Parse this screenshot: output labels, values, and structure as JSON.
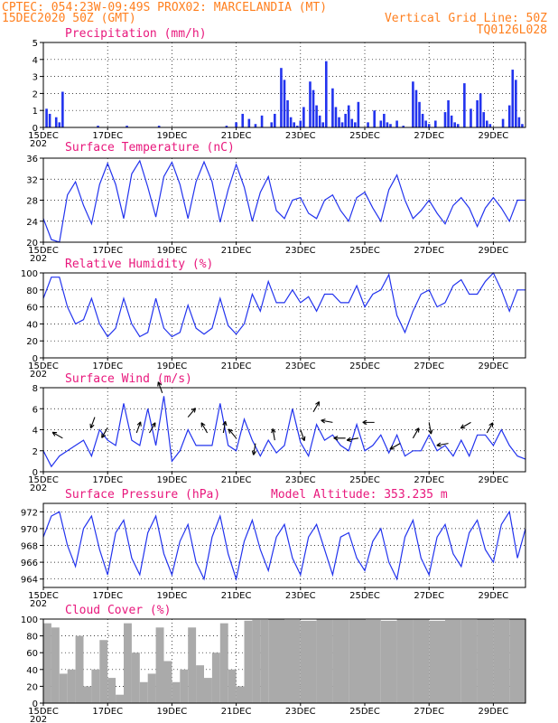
{
  "header": {
    "line1_left": "CPTEC:   054:23W-09:49S   PROX02: MARCELANDIA (MT)",
    "line2_left": "15DEC2020 50Z (GMT)",
    "line2_right": "Vertical Grid Line: 50Z",
    "line3_right": "TQ0126L028"
  },
  "colors": {
    "header": "#ff7f1e",
    "panel_title": "#e8177c",
    "series": "#2233ee",
    "cloud": "#aaaaaa"
  },
  "x_axis": {
    "ticks": [
      "15DEC",
      "17DEC",
      "19DEC",
      "21DEC",
      "23DEC",
      "25DEC",
      "27DEC",
      "29DEC"
    ],
    "start_day": 15,
    "end_day": 30,
    "year_fragment": "202"
  },
  "chart_data": [
    {
      "type": "bar",
      "title": "Precipitation (mm/h)",
      "ylim": [
        0,
        5
      ],
      "yticks": [
        "0",
        "1",
        "2",
        "3",
        "4",
        "5"
      ],
      "x": [
        "15.1",
        "15.2",
        "15.4",
        "15.5",
        "15.6",
        "16.7",
        "17.6",
        "18.6",
        "20.7",
        "21.0",
        "21.2",
        "21.4",
        "21.6",
        "21.8",
        "22.1",
        "22.2",
        "22.4",
        "22.5",
        "22.6",
        "22.7",
        "22.8",
        "22.9",
        "23.0",
        "23.1",
        "23.3",
        "23.4",
        "23.5",
        "23.6",
        "23.7",
        "23.8",
        "24.0",
        "24.1",
        "24.2",
        "24.3",
        "24.4",
        "24.5",
        "24.6",
        "24.7",
        "24.8",
        "25.1",
        "25.3",
        "25.5",
        "25.6",
        "25.7",
        "25.8",
        "26.0",
        "26.2",
        "26.5",
        "26.6",
        "26.7",
        "26.8",
        "26.9",
        "27.0",
        "27.2",
        "27.5",
        "27.6",
        "27.7",
        "27.8",
        "27.9",
        "28.1",
        "28.3",
        "28.5",
        "28.6",
        "28.7",
        "28.8",
        "28.9",
        "29.3",
        "29.5",
        "29.6",
        "29.7",
        "29.8",
        "29.9"
      ],
      "values": [
        1.1,
        0.8,
        0.6,
        0.3,
        2.1,
        0.1,
        0.1,
        0.1,
        0.1,
        0.3,
        0.8,
        0.5,
        0.2,
        0.7,
        0.3,
        0.8,
        3.5,
        2.8,
        1.6,
        0.6,
        0.3,
        0.1,
        0.4,
        1.2,
        2.7,
        2.2,
        1.3,
        0.7,
        0.3,
        3.9,
        2.3,
        1.2,
        0.6,
        0.3,
        0.8,
        1.3,
        0.5,
        0.3,
        1.5,
        0.3,
        1.0,
        0.4,
        0.8,
        0.3,
        0.2,
        0.4,
        0.1,
        2.7,
        2.2,
        1.5,
        0.8,
        0.4,
        0.2,
        0.4,
        0.9,
        1.6,
        0.7,
        0.3,
        0.2,
        2.6,
        1.1,
        1.6,
        2.0,
        0.9,
        0.4,
        0.2,
        0.5,
        1.3,
        3.4,
        2.8,
        0.6,
        0.2
      ]
    },
    {
      "type": "line",
      "title": "Surface Temperature (nC)",
      "ylim": [
        20,
        36
      ],
      "yticks": [
        "20",
        "24",
        "28",
        "32",
        "36"
      ],
      "x": [
        15.0,
        15.25,
        15.5,
        15.75,
        16.0,
        16.25,
        16.5,
        16.75,
        17.0,
        17.25,
        17.5,
        17.75,
        18.0,
        18.25,
        18.5,
        18.75,
        19.0,
        19.25,
        19.5,
        19.75,
        20.0,
        20.25,
        20.5,
        20.75,
        21.0,
        21.25,
        21.5,
        21.75,
        22.0,
        22.25,
        22.5,
        22.75,
        23.0,
        23.25,
        23.5,
        23.75,
        24.0,
        24.25,
        24.5,
        24.75,
        25.0,
        25.25,
        25.5,
        25.75,
        26.0,
        26.25,
        26.5,
        26.75,
        27.0,
        27.25,
        27.5,
        27.75,
        28.0,
        28.25,
        28.5,
        28.75,
        29.0,
        29.25,
        29.5,
        29.75,
        30.0
      ],
      "values": [
        24.5,
        20.5,
        20,
        29,
        31.5,
        27,
        23.5,
        31,
        35,
        31,
        24.5,
        33,
        35.5,
        30.5,
        24.8,
        32.5,
        35.2,
        31,
        24.5,
        31.5,
        35.3,
        31.5,
        23.8,
        30,
        34.8,
        30.5,
        24,
        29.5,
        32.5,
        26,
        24.5,
        28,
        28.5,
        25.5,
        24.5,
        28,
        29,
        26,
        24,
        28.5,
        29.5,
        26.5,
        24,
        30,
        32.8,
        28,
        24.5,
        26,
        28,
        25.5,
        23.5,
        27,
        28.5,
        26.5,
        23,
        26.5,
        28.5,
        26.5,
        24,
        28,
        28
      ]
    },
    {
      "type": "line",
      "title": "Relative Humidity (%)",
      "ylim": [
        0,
        100
      ],
      "yticks": [
        "0",
        "20",
        "40",
        "60",
        "80",
        "100"
      ],
      "x": [
        15.0,
        15.25,
        15.5,
        15.75,
        16.0,
        16.25,
        16.5,
        16.75,
        17.0,
        17.25,
        17.5,
        17.75,
        18.0,
        18.25,
        18.5,
        18.75,
        19.0,
        19.25,
        19.5,
        19.75,
        20.0,
        20.25,
        20.5,
        20.75,
        21.0,
        21.25,
        21.5,
        21.75,
        22.0,
        22.25,
        22.5,
        22.75,
        23.0,
        23.25,
        23.5,
        23.75,
        24.0,
        24.25,
        24.5,
        24.75,
        25.0,
        25.25,
        25.5,
        25.75,
        26.0,
        26.25,
        26.5,
        26.75,
        27.0,
        27.25,
        27.5,
        27.75,
        28.0,
        28.25,
        28.5,
        28.75,
        29.0,
        29.25,
        29.5,
        29.75,
        30.0
      ],
      "values": [
        70,
        95,
        95,
        60,
        40,
        45,
        70,
        40,
        25,
        35,
        70,
        40,
        25,
        30,
        70,
        35,
        25,
        30,
        62,
        35,
        28,
        35,
        70,
        38,
        28,
        40,
        75,
        55,
        90,
        65,
        65,
        80,
        65,
        72,
        55,
        75,
        75,
        65,
        65,
        85,
        60,
        75,
        80,
        98,
        50,
        30,
        55,
        75,
        80,
        60,
        65,
        85,
        92,
        75,
        75,
        90,
        100,
        80,
        55,
        80,
        80
      ]
    },
    {
      "type": "line",
      "title": "Surface Wind (m/s)",
      "ylim": [
        0,
        8
      ],
      "yticks": [
        "0",
        "2",
        "4",
        "6",
        "8"
      ],
      "x": [
        15.0,
        15.25,
        15.5,
        15.75,
        16.0,
        16.25,
        16.5,
        16.75,
        17.0,
        17.25,
        17.5,
        17.75,
        18.0,
        18.25,
        18.5,
        18.75,
        19.0,
        19.25,
        19.5,
        19.75,
        20.0,
        20.25,
        20.5,
        20.75,
        21.0,
        21.25,
        21.5,
        21.75,
        22.0,
        22.25,
        22.5,
        22.75,
        23.0,
        23.25,
        23.5,
        23.75,
        24.0,
        24.25,
        24.5,
        24.75,
        25.0,
        25.25,
        25.5,
        25.75,
        26.0,
        26.25,
        26.5,
        26.75,
        27.0,
        27.25,
        27.5,
        27.75,
        28.0,
        28.25,
        28.5,
        28.75,
        29.0,
        29.25,
        29.5,
        29.75,
        30.0
      ],
      "values": [
        2,
        0.5,
        1.5,
        2,
        2.5,
        3,
        1.5,
        4,
        3,
        2.5,
        6.5,
        3,
        2.5,
        6,
        2.5,
        7.2,
        1,
        2,
        4,
        2.5,
        2.5,
        2.5,
        6.5,
        2.5,
        2,
        5,
        3,
        1.5,
        3,
        1.8,
        2.5,
        6,
        2.8,
        1.5,
        4.5,
        3,
        3.5,
        2.5,
        2,
        4.5,
        2,
        2.5,
        3.5,
        1.8,
        3.5,
        1.5,
        2,
        2,
        3.5,
        2,
        2.5,
        1.5,
        3,
        1.5,
        3.5,
        3.5,
        2.5,
        4,
        2.5,
        1.5,
        1.2
      ],
      "arrows": [
        {
          "x": 15.6,
          "dir": 300
        },
        {
          "x": 16.6,
          "dir": 200
        },
        {
          "x": 17.0,
          "dir": 210
        },
        {
          "x": 17.9,
          "dir": 20
        },
        {
          "x": 18.3,
          "dir": 30
        },
        {
          "x": 18.7,
          "dir": 340
        },
        {
          "x": 19.5,
          "dir": 40
        },
        {
          "x": 20.1,
          "dir": 330
        },
        {
          "x": 20.6,
          "dir": 10
        },
        {
          "x": 21.0,
          "dir": 320
        },
        {
          "x": 21.6,
          "dir": 190
        },
        {
          "x": 22.2,
          "dir": 350
        },
        {
          "x": 23.0,
          "dir": 160
        },
        {
          "x": 23.4,
          "dir": 30
        },
        {
          "x": 24.0,
          "dir": 280
        },
        {
          "x": 24.4,
          "dir": 270
        },
        {
          "x": 24.8,
          "dir": 260
        },
        {
          "x": 25.3,
          "dir": 270
        },
        {
          "x": 26.1,
          "dir": 240
        },
        {
          "x": 26.5,
          "dir": 30
        },
        {
          "x": 27.0,
          "dir": 170
        },
        {
          "x": 27.6,
          "dir": 260
        },
        {
          "x": 28.3,
          "dir": 240
        },
        {
          "x": 28.8,
          "dir": 30
        }
      ]
    },
    {
      "type": "line",
      "title": "Surface Pressure (hPa)",
      "subtitle": "Model Altitude: 353.235 m",
      "ylim": [
        963,
        973
      ],
      "yticks": [
        "964",
        "966",
        "968",
        "970",
        "972"
      ],
      "x": [
        15.0,
        15.25,
        15.5,
        15.75,
        16.0,
        16.25,
        16.5,
        16.75,
        17.0,
        17.25,
        17.5,
        17.75,
        18.0,
        18.25,
        18.5,
        18.75,
        19.0,
        19.25,
        19.5,
        19.75,
        20.0,
        20.25,
        20.5,
        20.75,
        21.0,
        21.25,
        21.5,
        21.75,
        22.0,
        22.25,
        22.5,
        22.75,
        23.0,
        23.25,
        23.5,
        23.75,
        24.0,
        24.25,
        24.5,
        24.75,
        25.0,
        25.25,
        25.5,
        25.75,
        26.0,
        26.25,
        26.5,
        26.75,
        27.0,
        27.25,
        27.5,
        27.75,
        28.0,
        28.25,
        28.5,
        28.75,
        29.0,
        29.25,
        29.5,
        29.75,
        30.0
      ],
      "values": [
        969,
        971.5,
        972,
        968,
        965.5,
        970,
        971.5,
        967.5,
        964.5,
        969.5,
        971,
        966.5,
        964.5,
        969.5,
        971.5,
        967,
        964.5,
        968.5,
        970.5,
        966,
        964,
        969,
        971.5,
        967,
        964,
        968.5,
        971,
        967.5,
        965,
        969,
        970.5,
        966.5,
        964.5,
        969,
        970.5,
        967.5,
        964.5,
        969,
        969.5,
        966.5,
        965,
        968.5,
        970,
        966,
        964,
        969,
        971,
        966.5,
        964.5,
        969,
        970.5,
        967,
        965.5,
        969.5,
        971,
        967.5,
        966,
        970.5,
        972,
        966.5,
        970
      ]
    },
    {
      "type": "area",
      "title": "Cloud Cover (%)",
      "ylim": [
        0,
        100
      ],
      "yticks": [
        "0",
        "20",
        "40",
        "60",
        "80",
        "100"
      ],
      "x": [
        15.0,
        15.25,
        15.5,
        15.75,
        16.0,
        16.25,
        16.5,
        16.75,
        17.0,
        17.25,
        17.5,
        17.75,
        18.0,
        18.25,
        18.5,
        18.75,
        19.0,
        19.25,
        19.5,
        19.75,
        20.0,
        20.25,
        20.5,
        20.75,
        21.0,
        21.25,
        21.5,
        21.75,
        22.0,
        22.5,
        23.0,
        23.5,
        24.0,
        24.5,
        25.0,
        25.5,
        26.0,
        26.5,
        27.0,
        27.5,
        28.0,
        28.5,
        29.0,
        29.5,
        30.0
      ],
      "values": [
        95,
        90,
        35,
        40,
        80,
        20,
        40,
        75,
        30,
        10,
        95,
        60,
        25,
        35,
        90,
        50,
        25,
        40,
        90,
        45,
        30,
        60,
        95,
        40,
        20,
        98,
        99,
        99,
        100,
        99,
        98,
        100,
        100,
        100,
        99,
        98,
        100,
        100,
        98,
        99,
        99,
        100,
        99,
        100,
        100
      ]
    }
  ]
}
